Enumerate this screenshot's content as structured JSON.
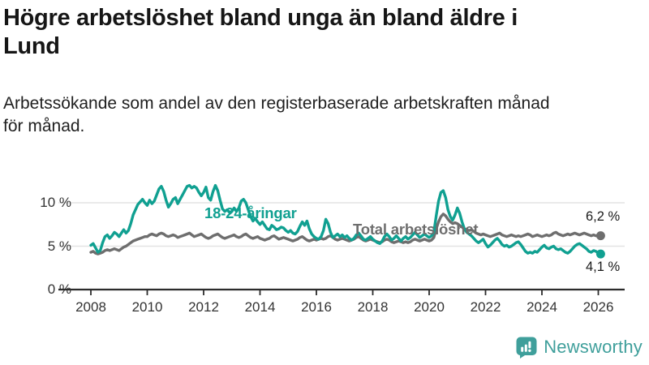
{
  "header": {
    "title_lines": [
      "Högre arbetslöshet bland unga än bland äldre i",
      "Lund"
    ],
    "subtitle_lines": [
      "Arbetssökande som andel av den registerbaserade arbetskraften månad",
      "för månad."
    ]
  },
  "chart_data": {
    "type": "line",
    "title": "Högre arbetslöshet bland unga än bland äldre i Lund",
    "subtitle": "Arbetssökande som andel av den registerbaserade arbetskraften månad för månad.",
    "grid": "horizontal",
    "grid_color": "#e3e3e3",
    "axis_color": "#2b2b2b",
    "x_axis": {
      "start_year": 2008,
      "points_per_year": 12,
      "tick_labels": [
        "2008",
        "2010",
        "2012",
        "2014",
        "2016",
        "2018",
        "2020",
        "2022",
        "2024",
        "2026"
      ]
    },
    "y_axis": {
      "unit": "%",
      "ylim": [
        0,
        13
      ],
      "tick_values": [
        10,
        5,
        0
      ],
      "tick_labels": [
        "10 %",
        "5 %",
        "0 %"
      ]
    },
    "series": [
      {
        "name": "Total arbetslöshet",
        "color": "#6e6e6e",
        "end_label": "6,2 %",
        "end_value": 6.2,
        "values": [
          4.3,
          4.4,
          4.2,
          4.1,
          4.2,
          4.3,
          4.5,
          4.6,
          4.5,
          4.6,
          4.7,
          4.6,
          4.5,
          4.7,
          4.9,
          5.0,
          5.2,
          5.4,
          5.6,
          5.7,
          5.8,
          5.9,
          6.0,
          6.1,
          6.1,
          6.3,
          6.4,
          6.3,
          6.2,
          6.4,
          6.5,
          6.4,
          6.2,
          6.1,
          6.2,
          6.3,
          6.2,
          6.0,
          6.1,
          6.2,
          6.3,
          6.4,
          6.5,
          6.3,
          6.1,
          6.2,
          6.3,
          6.4,
          6.2,
          6.0,
          5.9,
          6.0,
          6.2,
          6.3,
          6.4,
          6.2,
          6.0,
          5.9,
          6.0,
          6.1,
          6.2,
          6.3,
          6.1,
          6.0,
          6.1,
          6.3,
          6.4,
          6.2,
          6.0,
          5.9,
          6.0,
          6.1,
          5.9,
          5.8,
          5.7,
          5.8,
          5.9,
          6.1,
          6.2,
          6.0,
          5.8,
          5.9,
          6.0,
          5.9,
          5.8,
          5.7,
          5.6,
          5.7,
          5.8,
          6.0,
          6.1,
          5.9,
          5.7,
          5.6,
          5.7,
          5.8,
          5.7,
          5.8,
          5.9,
          5.8,
          5.9,
          6.1,
          6.2,
          6.0,
          5.8,
          5.7,
          5.8,
          5.9,
          5.8,
          5.7,
          5.6,
          5.7,
          5.8,
          6.0,
          6.1,
          5.9,
          5.7,
          5.6,
          5.7,
          5.8,
          5.7,
          5.6,
          5.5,
          5.4,
          5.5,
          5.7,
          5.8,
          5.7,
          5.5,
          5.4,
          5.5,
          5.6,
          5.5,
          5.4,
          5.5,
          5.4,
          5.5,
          5.7,
          5.8,
          5.7,
          5.6,
          5.7,
          5.8,
          5.7,
          5.6,
          5.7,
          6.0,
          7.0,
          7.8,
          8.4,
          8.7,
          8.5,
          8.1,
          7.8,
          7.6,
          7.7,
          7.6,
          7.4,
          7.2,
          7.0,
          6.9,
          6.8,
          6.9,
          6.7,
          6.5,
          6.4,
          6.3,
          6.4,
          6.3,
          6.2,
          6.1,
          6.2,
          6.3,
          6.4,
          6.5,
          6.3,
          6.2,
          6.1,
          6.2,
          6.3,
          6.2,
          6.1,
          6.2,
          6.1,
          6.2,
          6.3,
          6.4,
          6.3,
          6.1,
          6.2,
          6.3,
          6.2,
          6.1,
          6.2,
          6.3,
          6.2,
          6.3,
          6.5,
          6.6,
          6.4,
          6.3,
          6.2,
          6.3,
          6.4,
          6.3,
          6.4,
          6.5,
          6.4,
          6.3,
          6.4,
          6.5,
          6.4,
          6.3,
          6.2,
          6.3,
          6.2,
          6.2,
          6.2
        ]
      },
      {
        "name": "18-24-åringar",
        "color": "#10a091",
        "end_label": "4,1 %",
        "end_value": 4.1,
        "values": [
          5.1,
          5.3,
          4.8,
          4.3,
          4.5,
          5.4,
          6.1,
          6.3,
          5.9,
          6.2,
          6.6,
          6.4,
          6.1,
          6.5,
          6.9,
          6.5,
          6.8,
          7.6,
          8.6,
          9.2,
          9.8,
          10.1,
          10.4,
          10.0,
          9.7,
          10.3,
          9.9,
          10.2,
          10.9,
          11.6,
          11.9,
          11.3,
          10.3,
          9.5,
          9.9,
          10.4,
          10.6,
          9.9,
          10.4,
          10.9,
          11.4,
          11.9,
          12.0,
          11.7,
          11.9,
          11.7,
          11.2,
          10.8,
          11.2,
          11.8,
          10.6,
          10.3,
          11.3,
          12.0,
          11.4,
          10.3,
          9.3,
          9.0,
          9.2,
          8.9,
          9.0,
          9.4,
          9.0,
          9.4,
          10.2,
          10.4,
          10.0,
          9.2,
          8.4,
          7.9,
          8.2,
          7.8,
          7.5,
          7.8,
          7.4,
          7.0,
          6.9,
          7.4,
          7.2,
          6.9,
          7.0,
          7.2,
          7.1,
          6.8,
          6.6,
          6.8,
          6.5,
          6.4,
          6.7,
          7.3,
          7.8,
          7.4,
          7.9,
          7.0,
          6.4,
          6.1,
          5.9,
          5.8,
          6.1,
          6.8,
          8.1,
          7.6,
          6.6,
          6.0,
          6.2,
          6.4,
          6.1,
          6.3,
          6.0,
          6.2,
          5.9,
          5.7,
          5.9,
          6.3,
          6.5,
          6.2,
          5.8,
          5.7,
          5.9,
          6.1,
          5.8,
          5.6,
          5.4,
          5.3,
          5.6,
          6.1,
          6.4,
          6.1,
          5.7,
          5.9,
          6.2,
          5.9,
          5.6,
          5.9,
          6.1,
          5.8,
          6.0,
          6.3,
          6.6,
          6.3,
          6.0,
          6.2,
          6.4,
          6.2,
          6.0,
          6.2,
          6.6,
          8.5,
          10.2,
          11.2,
          11.4,
          10.6,
          9.2,
          8.4,
          8.0,
          8.6,
          9.4,
          8.8,
          7.8,
          7.0,
          6.6,
          6.4,
          6.2,
          5.9,
          5.6,
          5.4,
          5.6,
          5.8,
          5.3,
          4.9,
          5.1,
          5.4,
          5.7,
          5.9,
          5.6,
          5.2,
          5.0,
          5.1,
          4.9,
          5.0,
          5.2,
          5.4,
          5.5,
          5.2,
          4.8,
          4.4,
          4.2,
          4.3,
          4.2,
          4.4,
          4.3,
          4.6,
          4.9,
          5.1,
          4.8,
          4.7,
          4.9,
          5.0,
          4.7,
          4.6,
          4.7,
          4.5,
          4.3,
          4.2,
          4.4,
          4.7,
          5.0,
          5.2,
          5.3,
          5.1,
          4.9,
          4.7,
          4.4,
          4.3,
          4.5,
          4.4,
          4.2,
          4.1
        ]
      }
    ]
  },
  "footer": {
    "brand": "Newsworthy",
    "brand_color": "#3f9f9b",
    "icon": "newsworthy-speech-bubble-bar-chart-icon"
  }
}
